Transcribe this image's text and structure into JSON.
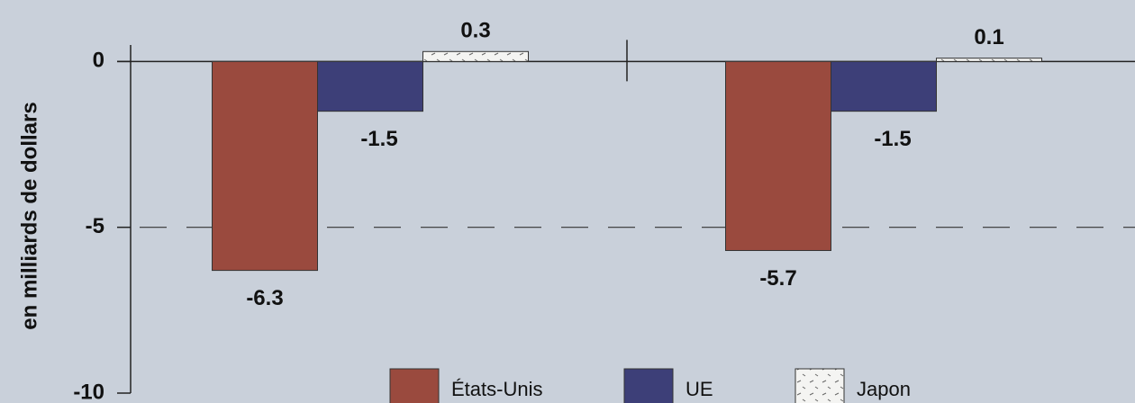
{
  "chart_data": {
    "type": "bar",
    "y_label": "en milliards de dollars",
    "categories": [
      null,
      null
    ],
    "series": [
      {
        "name": "États-Unis",
        "color": "#9a4a3e",
        "values": [
          -6.3,
          -5.7
        ]
      },
      {
        "name": "UE",
        "color": "#3d3f78",
        "values": [
          -1.5,
          -1.5
        ]
      },
      {
        "name": "Japon",
        "color": "#f4f4f2",
        "values": [
          0.3,
          0.1
        ]
      }
    ],
    "ylim": [
      -10,
      1.8
    ],
    "yticks": [
      -10,
      -5,
      0
    ],
    "grid": true
  }
}
